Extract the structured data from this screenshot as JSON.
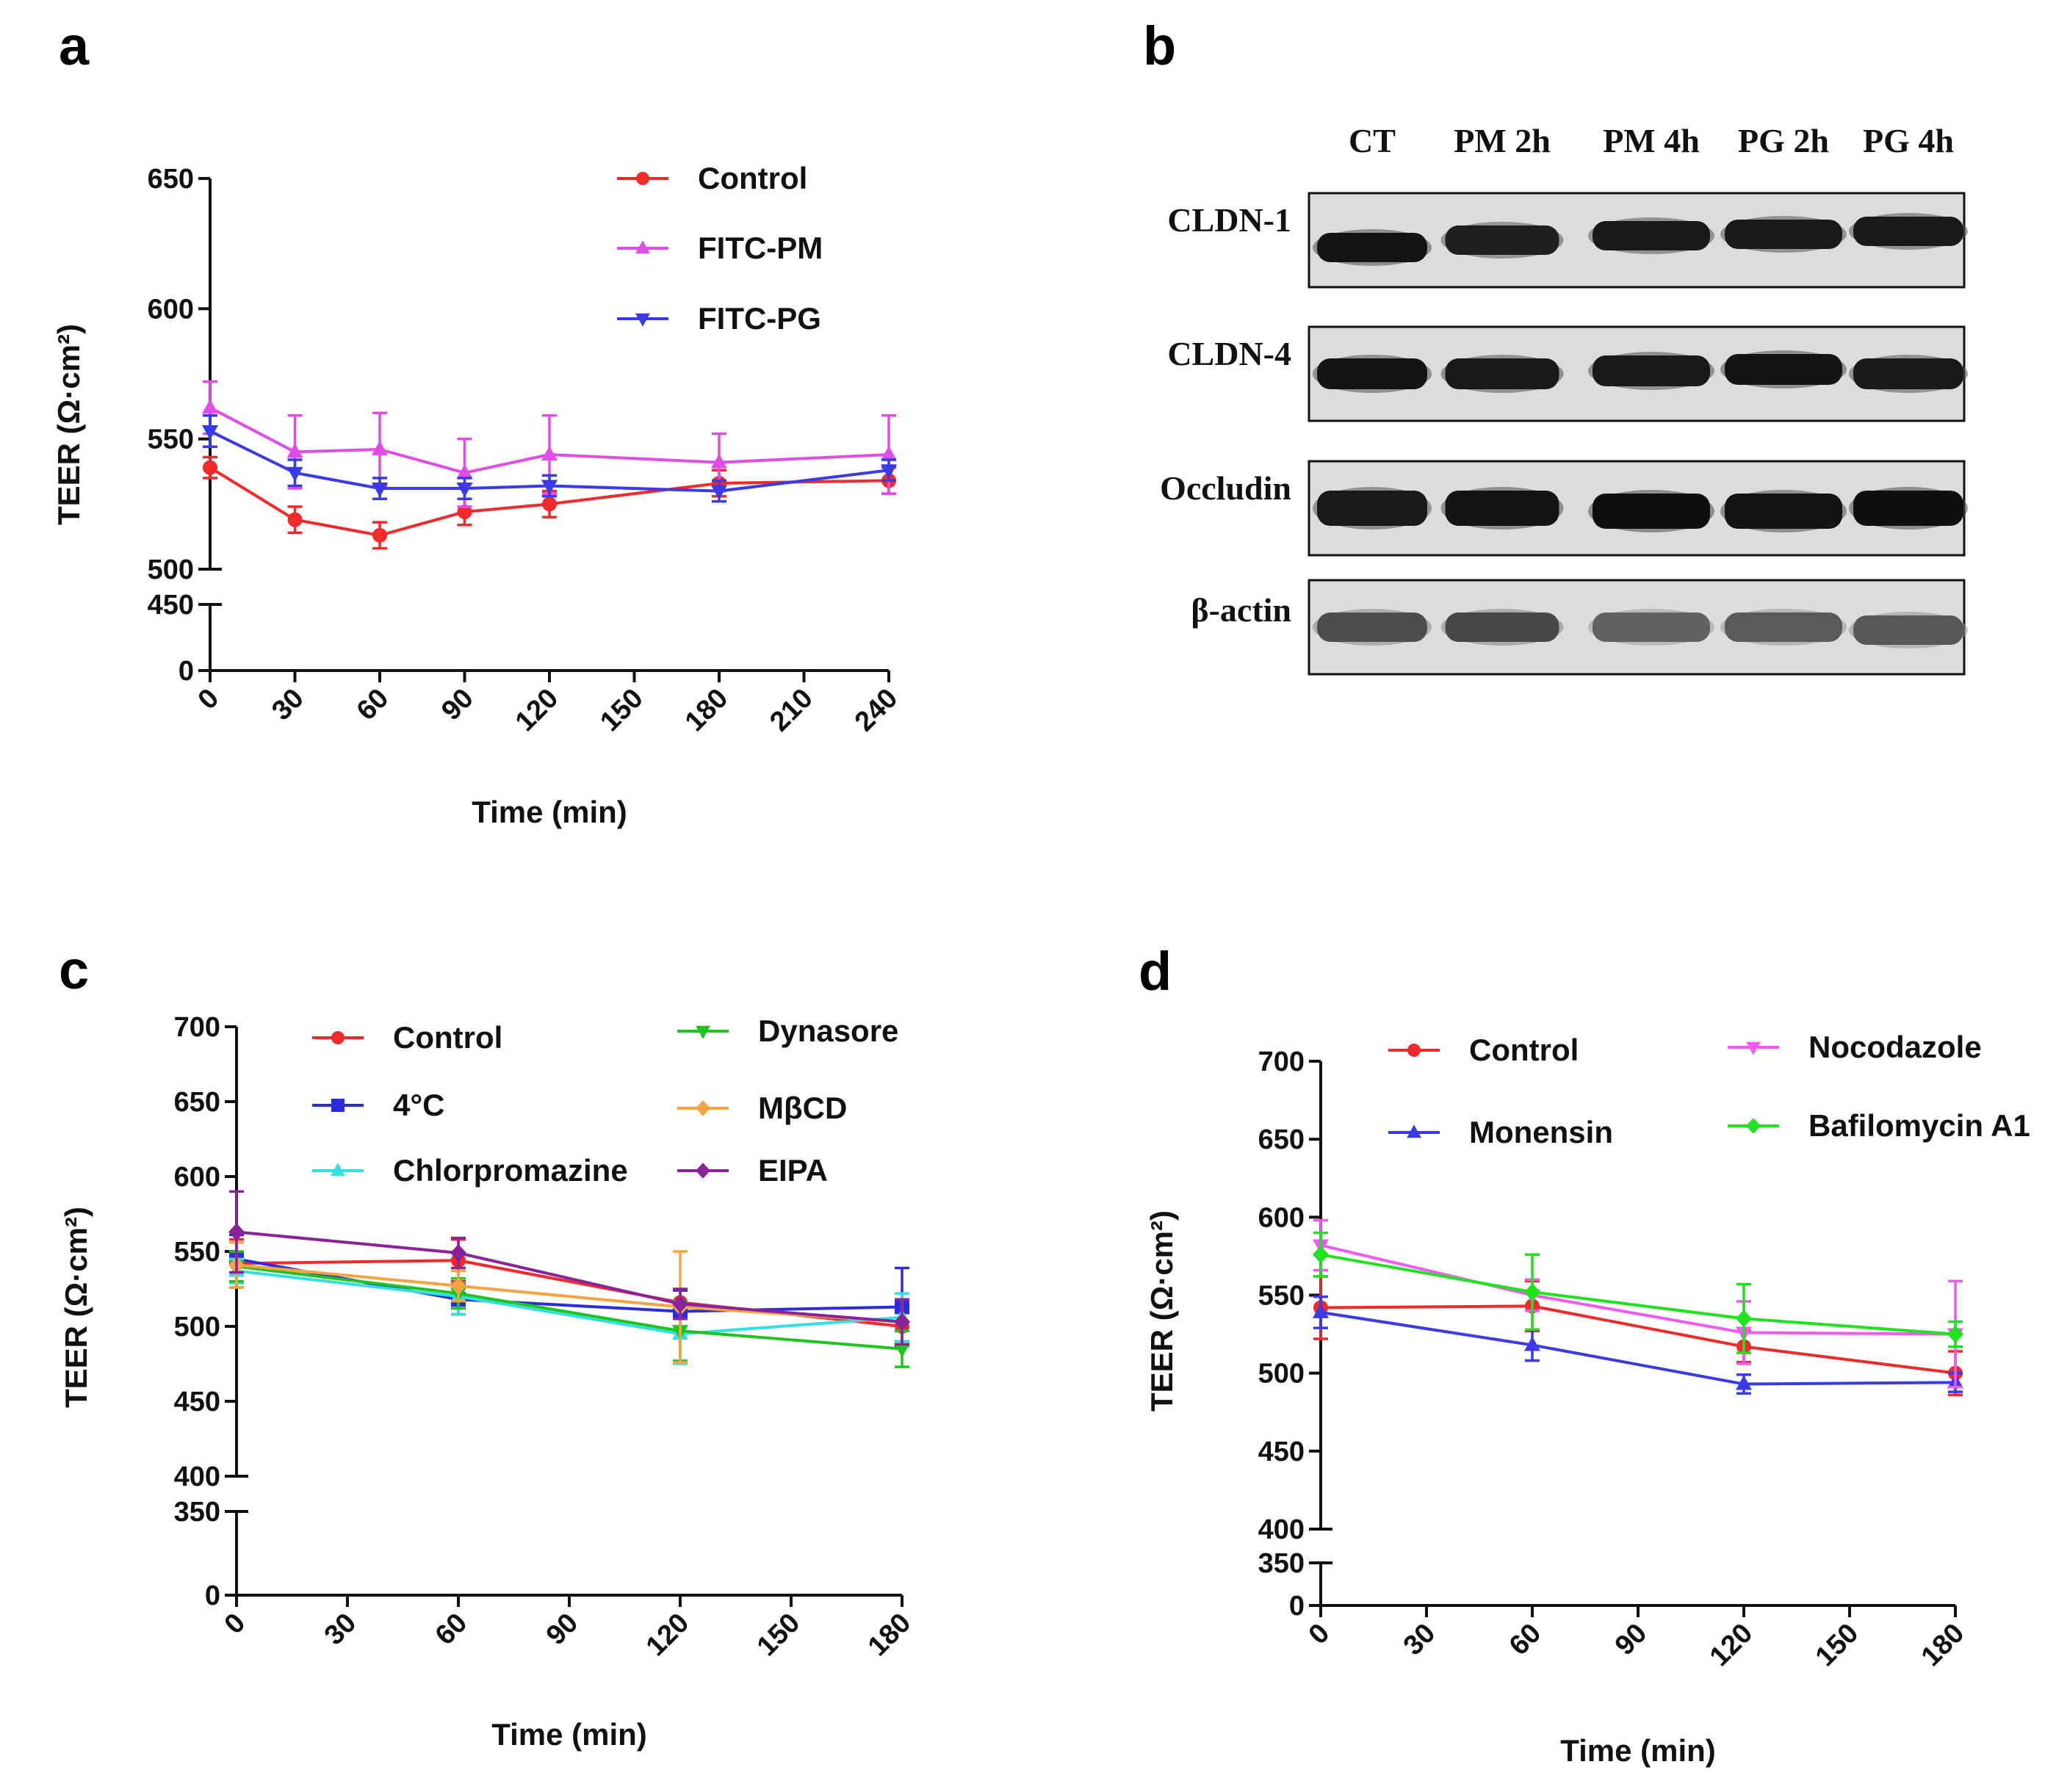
{
  "panels": {
    "a": {
      "letter": "a"
    },
    "b": {
      "letter": "b"
    },
    "c": {
      "letter": "c"
    },
    "d": {
      "letter": "d"
    }
  },
  "blot": {
    "lanes": [
      "CT",
      "PM 2h",
      "PM 4h",
      "PG 2h",
      "PG 4h"
    ],
    "proteins": [
      "CLDN-1",
      "CLDN-4",
      "Occludin",
      "β-actin"
    ]
  },
  "chart_data": [
    {
      "panel": "a",
      "type": "line",
      "xlabel": "Time (min)",
      "ylabel": "TEER (Ω·cm²)",
      "x_ticks": [
        0,
        30,
        60,
        90,
        120,
        150,
        180,
        210,
        240
      ],
      "y_ticks_lower": [
        0,
        450
      ],
      "y_ticks_upper": [
        500,
        550,
        600,
        650
      ],
      "axis_break": true,
      "ylim_upper": [
        500,
        650
      ],
      "legend_position": "top-right",
      "series": [
        {
          "name": "Control",
          "color": "#f02a2a",
          "marker": "circle",
          "x": [
            0,
            30,
            60,
            90,
            120,
            180,
            240
          ],
          "y": [
            539,
            519,
            513,
            522,
            525,
            533,
            534
          ],
          "err": [
            4,
            5,
            5,
            5,
            5,
            5,
            5
          ]
        },
        {
          "name": "FITC-PM",
          "color": "#e04ce6",
          "marker": "triangle-up",
          "x": [
            0,
            30,
            60,
            90,
            120,
            180,
            240
          ],
          "y": [
            562,
            545,
            546,
            537,
            544,
            541,
            544
          ],
          "err": [
            10,
            14,
            14,
            13,
            15,
            11,
            15
          ]
        },
        {
          "name": "FITC-PG",
          "color": "#3a3ae8",
          "marker": "triangle-down",
          "x": [
            0,
            30,
            60,
            90,
            120,
            180,
            240
          ],
          "y": [
            553,
            537,
            531,
            531,
            532,
            530,
            538
          ],
          "err": [
            6,
            5,
            4,
            4,
            4,
            4,
            4
          ]
        }
      ]
    },
    {
      "panel": "c",
      "type": "line",
      "xlabel": "Time (min)",
      "ylabel": "TEER (Ω·cm²)",
      "x_ticks": [
        0,
        30,
        60,
        90,
        120,
        150,
        180
      ],
      "y_ticks_lower": [
        0,
        350
      ],
      "y_ticks_upper": [
        400,
        450,
        500,
        550,
        600,
        650,
        700
      ],
      "axis_break": true,
      "ylim_upper": [
        400,
        700
      ],
      "legend_position": "top",
      "series": [
        {
          "name": "Control",
          "color": "#f02a2a",
          "marker": "circle",
          "x": [
            0,
            60,
            120,
            180
          ],
          "y": [
            542,
            544,
            516,
            500
          ],
          "err": [
            16,
            14,
            8,
            10
          ]
        },
        {
          "name": "4°C",
          "color": "#2b2be0",
          "marker": "square",
          "x": [
            0,
            60,
            120,
            180
          ],
          "y": [
            545,
            518,
            510,
            513
          ],
          "err": [
            16,
            10,
            14,
            26
          ]
        },
        {
          "name": "Chlorpromazine",
          "color": "#33e0e0",
          "marker": "triangle-up",
          "x": [
            0,
            60,
            120,
            180
          ],
          "y": [
            537,
            520,
            495,
            506
          ],
          "err": [
            8,
            12,
            20,
            16
          ]
        },
        {
          "name": "Dynasore",
          "color": "#1fc41f",
          "marker": "triangle-down",
          "x": [
            0,
            60,
            120,
            180
          ],
          "y": [
            540,
            522,
            497,
            485
          ],
          "err": [
            10,
            10,
            20,
            12
          ]
        },
        {
          "name": "MβCD",
          "color": "#f5a442",
          "marker": "diamond",
          "x": [
            0,
            60,
            120,
            180
          ],
          "y": [
            541,
            527,
            513,
            503
          ],
          "err": [
            15,
            10,
            37,
            15
          ]
        },
        {
          "name": "EIPA",
          "color": "#8a229a",
          "marker": "diamond",
          "x": [
            0,
            60,
            120,
            180
          ],
          "y": [
            563,
            549,
            515,
            503
          ],
          "err": [
            27,
            10,
            10,
            15
          ]
        }
      ]
    },
    {
      "panel": "d",
      "type": "line",
      "xlabel": "Time (min)",
      "ylabel": "TEER (Ω·cm²)",
      "x_ticks": [
        0,
        30,
        60,
        90,
        120,
        150,
        180
      ],
      "y_ticks_lower": [
        0,
        350
      ],
      "y_ticks_upper": [
        400,
        450,
        500,
        550,
        600,
        650,
        700
      ],
      "axis_break": true,
      "ylim_upper": [
        400,
        700
      ],
      "legend_position": "top",
      "series": [
        {
          "name": "Control",
          "color": "#f02a2a",
          "marker": "circle",
          "x": [
            0,
            60,
            120,
            180
          ],
          "y": [
            542,
            543,
            517,
            500
          ],
          "err": [
            20,
            16,
            10,
            14
          ]
        },
        {
          "name": "Monensin",
          "color": "#3a3ae8",
          "marker": "triangle-up",
          "x": [
            0,
            60,
            120,
            180
          ],
          "y": [
            539,
            518,
            493,
            494
          ],
          "err": [
            10,
            10,
            6,
            6
          ]
        },
        {
          "name": "Nocodazole",
          "color": "#ef5aef",
          "marker": "triangle-down",
          "x": [
            0,
            60,
            120,
            180
          ],
          "y": [
            582,
            550,
            526,
            525
          ],
          "err": [
            16,
            10,
            20,
            34
          ]
        },
        {
          "name": "Bafilomycin A1",
          "color": "#1ee31e",
          "marker": "diamond",
          "x": [
            0,
            60,
            120,
            180
          ],
          "y": [
            576,
            552,
            535,
            525
          ],
          "err": [
            14,
            24,
            22,
            8
          ]
        }
      ]
    }
  ]
}
